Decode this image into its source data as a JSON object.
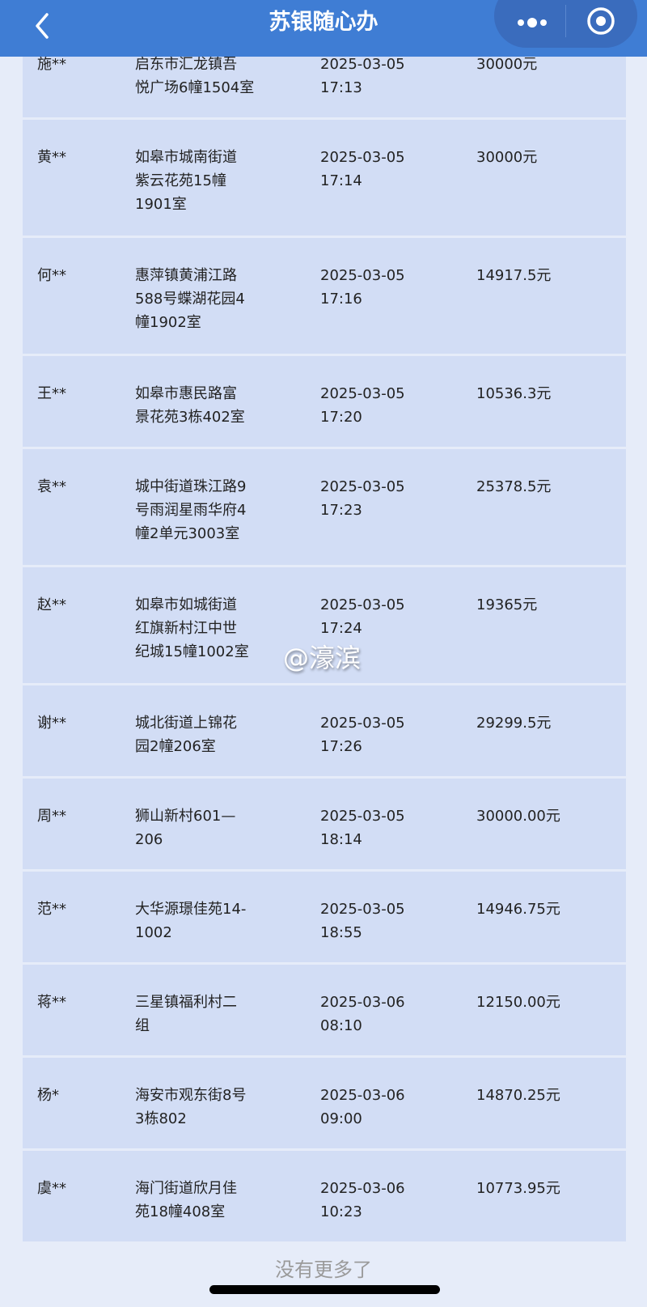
{
  "header": {
    "title": "苏银随心办",
    "back_icon": "chevron-left-icon",
    "more_icon": "more-dots-icon",
    "close_icon": "target-circle-icon"
  },
  "colors": {
    "header": "#3f7dd4",
    "card": "#d2ddf5",
    "page": "#e6ecf9"
  },
  "rows": [
    {
      "name": "施**",
      "address": "启东市汇龙镇吾\n悦广场6幢1504室",
      "datetime": "2025-03-05\n17:13",
      "amount": "30000元"
    },
    {
      "name": "黄**",
      "address": "如皋市城南街道\n紫云花苑15幢\n1901室",
      "datetime": "2025-03-05\n17:14",
      "amount": "30000元"
    },
    {
      "name": "何**",
      "address": "惠萍镇黄浦江路\n588号蝶湖花园4\n幢1902室",
      "datetime": "2025-03-05\n17:16",
      "amount": "14917.5元"
    },
    {
      "name": "王**",
      "address": "如皋市惠民路富\n景花苑3栋402室",
      "datetime": "2025-03-05\n17:20",
      "amount": "10536.3元"
    },
    {
      "name": "袁**",
      "address": "城中街道珠江路9\n号雨润星雨华府4\n幢2单元3003室",
      "datetime": "2025-03-05\n17:23",
      "amount": "25378.5元"
    },
    {
      "name": "赵**",
      "address": "如皋市如城街道\n红旗新村江中世\n纪城15幢1002室",
      "datetime": "2025-03-05\n17:24",
      "amount": "19365元"
    },
    {
      "name": "谢**",
      "address": "城北街道上锦花\n园2幢206室",
      "datetime": "2025-03-05\n17:26",
      "amount": "29299.5元"
    },
    {
      "name": "周**",
      "address": "狮山新村601—\n206",
      "datetime": "2025-03-05\n18:14",
      "amount": "30000.00元"
    },
    {
      "name": "范**",
      "address": "大华源璟佳苑14-\n1002",
      "datetime": "2025-03-05\n18:55",
      "amount": "14946.75元"
    },
    {
      "name": "蒋**",
      "address": "三星镇福利村二\n组",
      "datetime": "2025-03-06\n08:10",
      "amount": "12150.00元"
    },
    {
      "name": "杨*",
      "address": "海安市观东街8号\n3栋802",
      "datetime": "2025-03-06\n09:00",
      "amount": "14870.25元"
    },
    {
      "name": "虞**",
      "address": "海门街道欣月佳\n苑18幢408室",
      "datetime": "2025-03-06\n10:23",
      "amount": "10773.95元"
    }
  ],
  "watermark": "@濠滨",
  "footer": {
    "text": "没有更多了"
  }
}
